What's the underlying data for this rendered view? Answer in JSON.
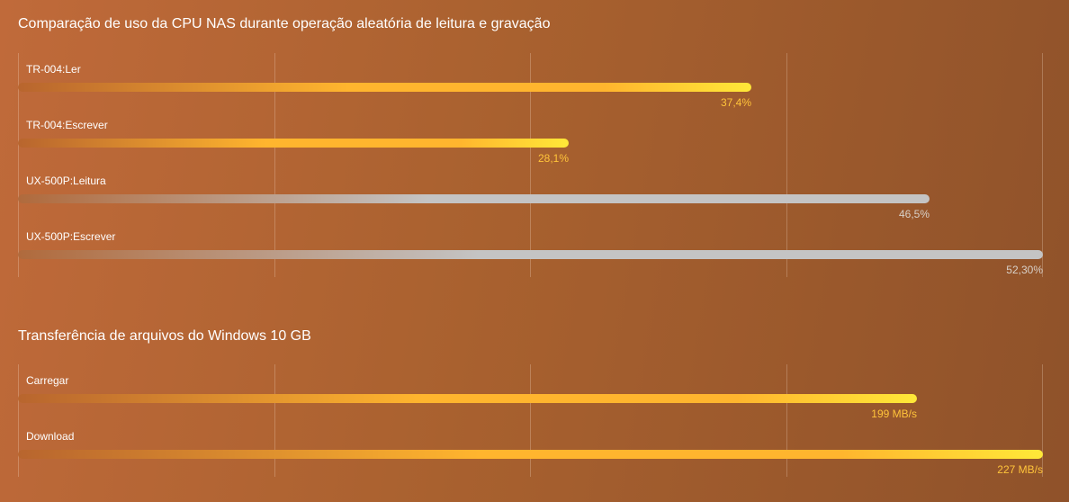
{
  "chart_data": [
    {
      "type": "bar",
      "orientation": "horizontal",
      "title": "Comparação de uso da CPU NAS durante operação aleatória de leitura e gravação",
      "categories": [
        "TR-004:Ler",
        "TR-004:Escrever",
        "UX-500P:Leitura",
        "UX-500P:Escrever"
      ],
      "values": [
        37.4,
        28.1,
        46.5,
        52.3
      ],
      "value_labels": [
        "37,4%",
        "28,1%",
        "46,5%",
        "52,30%"
      ],
      "bar_styles": [
        "yellow",
        "yellow",
        "gray",
        "gray"
      ],
      "xlim": [
        0,
        52.3
      ],
      "grid": true
    },
    {
      "type": "bar",
      "orientation": "horizontal",
      "title": "Transferência de arquivos do Windows 10 GB",
      "categories": [
        "Carregar",
        "Download"
      ],
      "values": [
        199,
        227
      ],
      "value_labels": [
        "199 MB/s",
        "227 MB/s"
      ],
      "bar_styles": [
        "yellow",
        "yellow"
      ],
      "xlim": [
        0,
        227
      ],
      "grid": true
    }
  ],
  "colors": {
    "yellow_bar_start": "#b8652e",
    "yellow_bar_mid": "#ffb52e",
    "yellow_bar_end": "#ffe838",
    "gray_bar_start": "#b06a3c",
    "gray_bar_end": "#c4c4c4",
    "yellow_value_text": "#ffc43a",
    "gray_value_text": "#d8d0c8"
  }
}
